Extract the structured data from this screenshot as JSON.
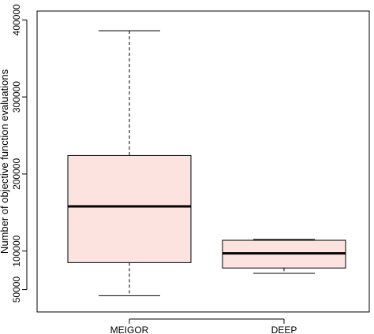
{
  "chart_data": {
    "type": "boxplot",
    "title": "",
    "xlabel": "",
    "ylabel": "Number of objective function evaluations",
    "ylim": [
      30000,
      400000
    ],
    "yticks": [
      50000,
      100000,
      200000,
      300000,
      400000
    ],
    "ytick_labels": [
      "50000",
      "100000",
      "200000",
      "300000",
      "400000"
    ],
    "categories": [
      "MEIGOR",
      "DEEP"
    ],
    "boxes": [
      {
        "label": "MEIGOR",
        "whisker_low": 42000,
        "q1": 85000,
        "median": 158000,
        "q3": 224000,
        "whisker_high": 386000
      },
      {
        "label": "DEEP",
        "whisker_low": 71000,
        "q1": 78000,
        "median": 97000,
        "q3": 114000,
        "whisker_high": 115000
      }
    ],
    "box_fill": "#fde3df",
    "grid": false,
    "legend": "none"
  }
}
